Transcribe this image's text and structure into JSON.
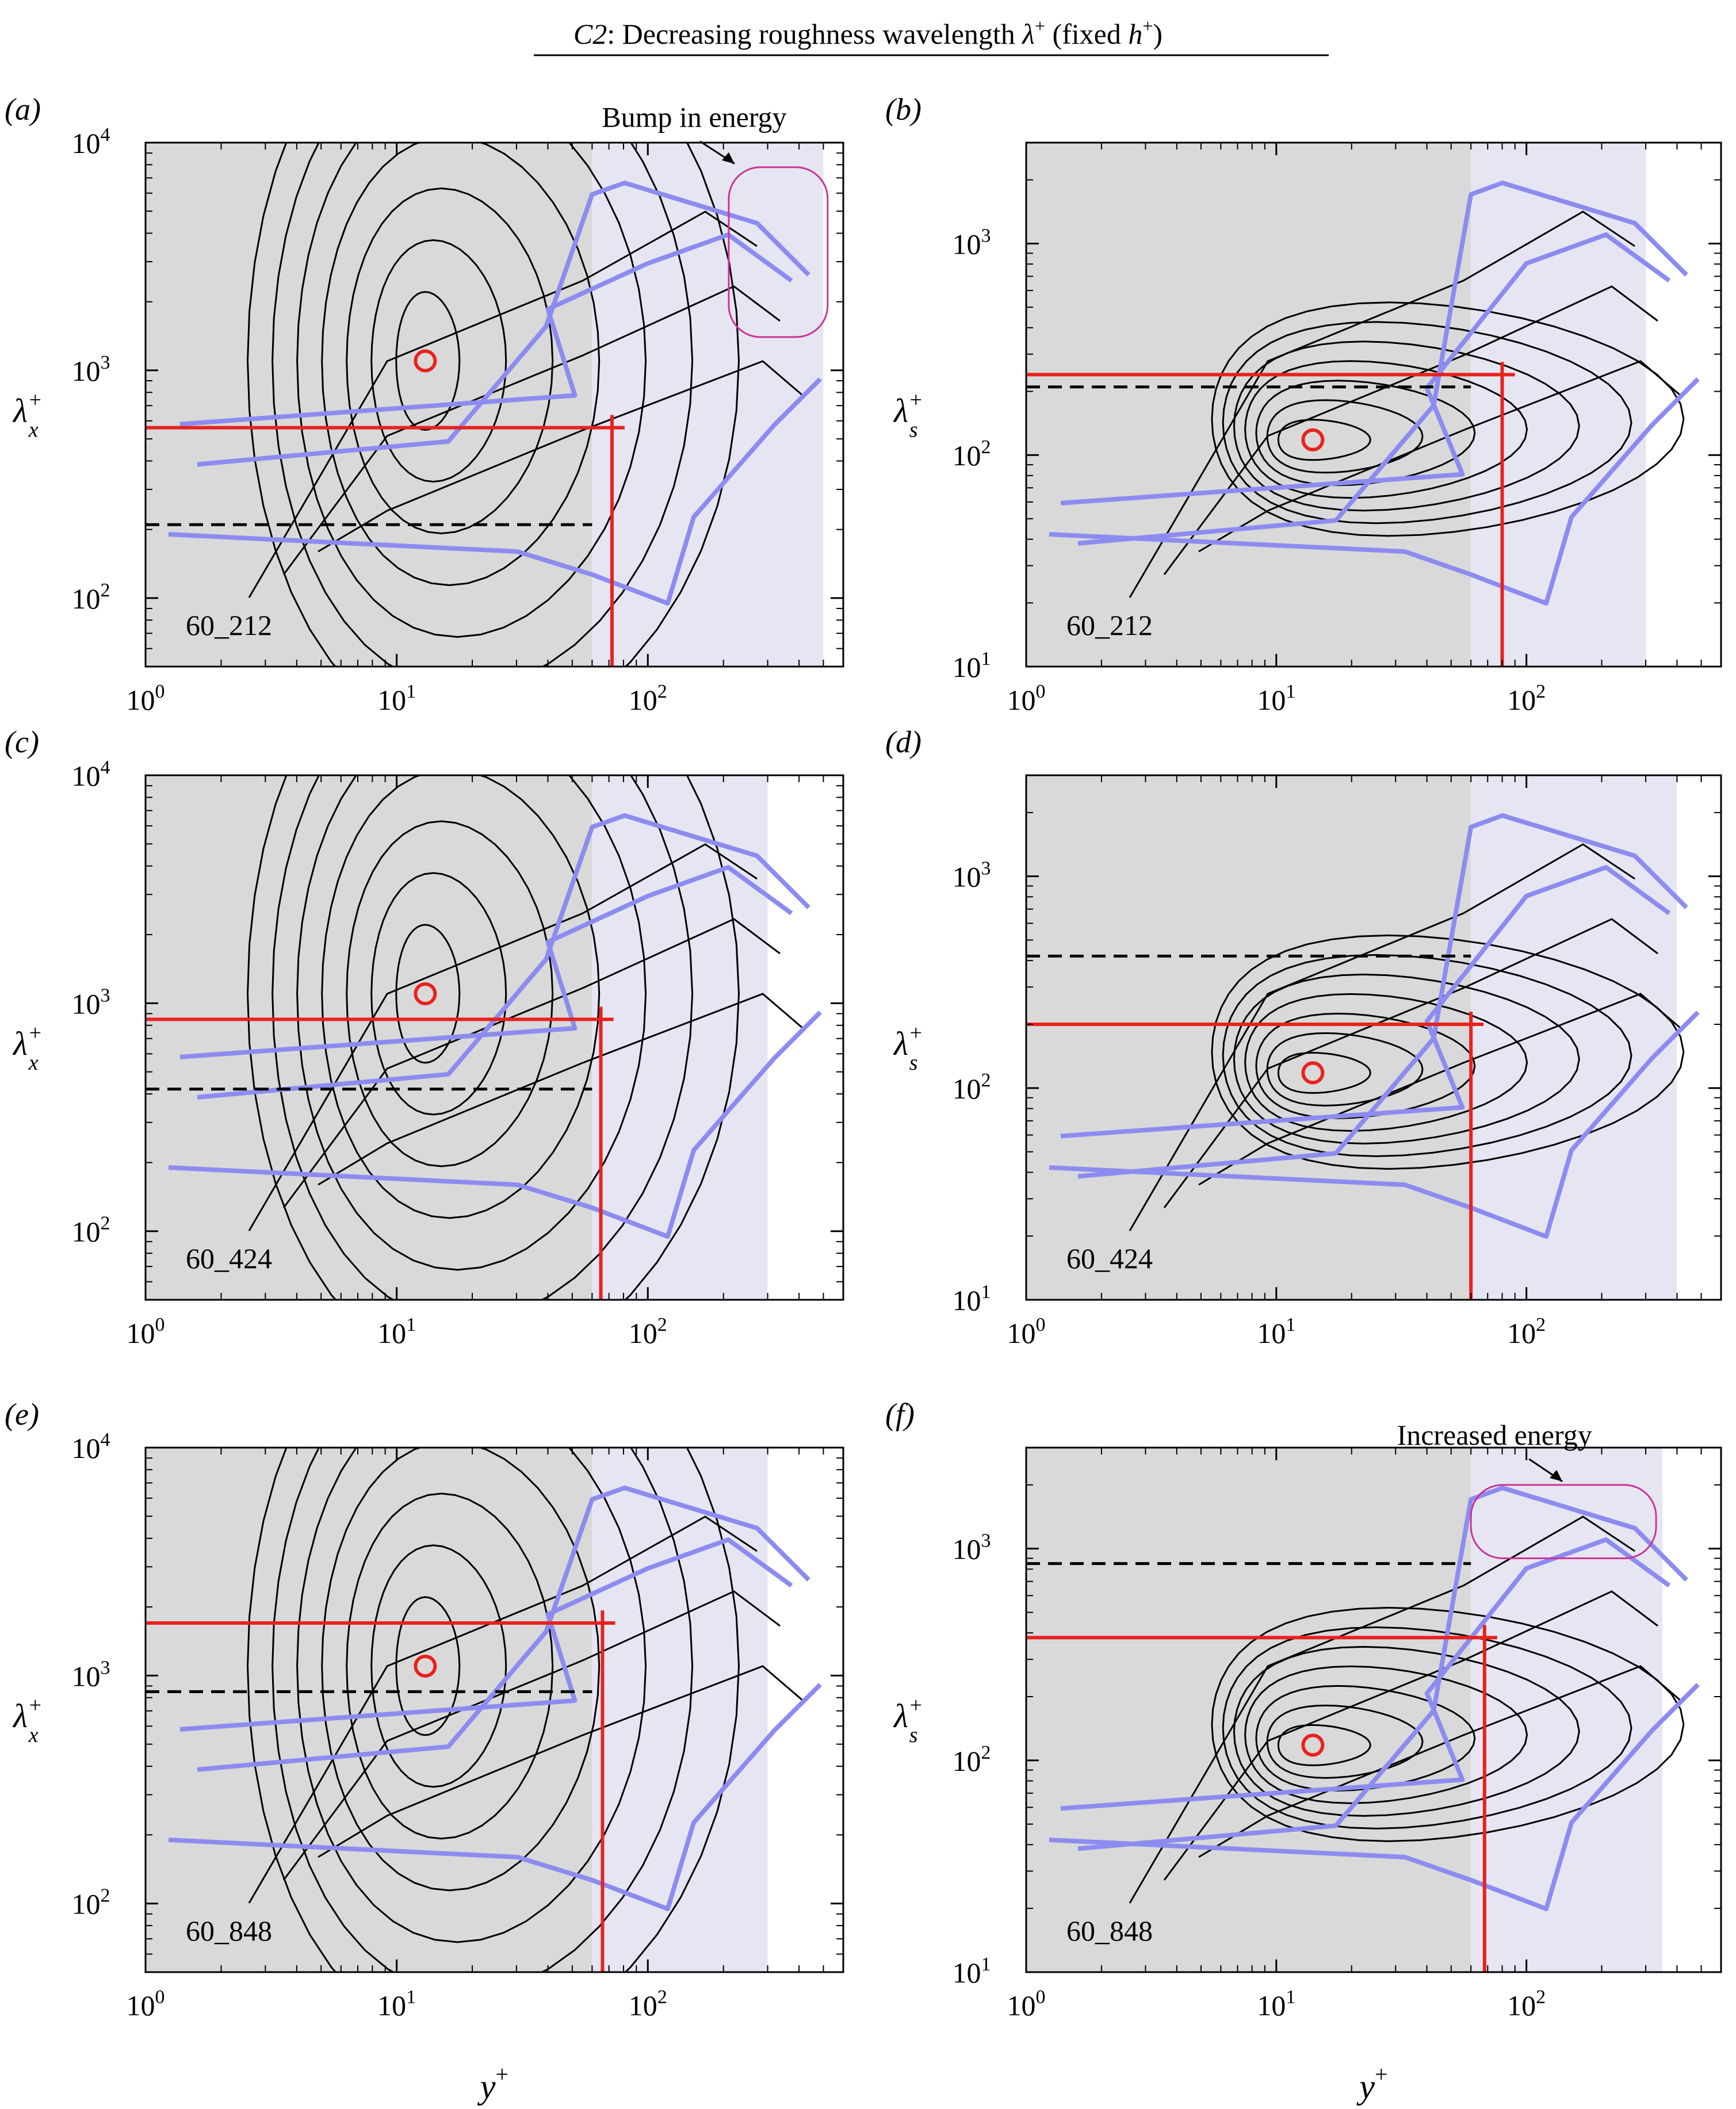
{
  "figure": {
    "title_case": "C2",
    "title_rest": ": Decreasing roughness wavelength ",
    "title_symbol": "λ",
    "title_symbol_sup": "+",
    "title_tail": " (fixed ",
    "title_h": "h",
    "title_h_sup": "+",
    "title_close": ")"
  },
  "axes_text": {
    "x_label": "y",
    "x_label_sup": "+",
    "ylabel_left": "λ",
    "ylabel_left_sub": "x",
    "ylabel_right": "λ",
    "ylabel_right_sub": "s",
    "ylabel_sup": "+",
    "tick_base": "10"
  },
  "annotations": {
    "bump": "Bump in energy",
    "increased": "Increased energy"
  },
  "colors": {
    "near_wall_shade": "#d9d9d9",
    "outer_shade": "#e6e6f2",
    "contour": "#000000",
    "blue_contour": "#8c8cf0",
    "red_marker": "#e8221e",
    "highlight_box": "#cc3399"
  },
  "chart_data": [
    {
      "panel": "(a)",
      "label": "60_212",
      "type": "contour",
      "ylabel": "λx+",
      "xscale": "log",
      "yscale": "log",
      "xlim": [
        1,
        600
      ],
      "ylim": [
        50,
        10000
      ],
      "yticks": [
        100,
        1000,
        10000
      ],
      "xticks": [
        1,
        10,
        100
      ],
      "grey_region_x": [
        1,
        60
      ],
      "blue_region_x": [
        60,
        500
      ],
      "peak": {
        "x": 13,
        "y": 1100
      },
      "red_h_y": 560,
      "red_v_x": 72,
      "dashed_y": 210,
      "annotation": "Bump in energy",
      "box": {
        "x": [
          210,
          520
        ],
        "y": [
          1400,
          7800
        ]
      }
    },
    {
      "panel": "(b)",
      "label": "60_212",
      "type": "contour",
      "ylabel": "λs+",
      "xscale": "log",
      "yscale": "log",
      "xlim": [
        1,
        600
      ],
      "ylim": [
        10,
        3000
      ],
      "yticks": [
        10,
        100,
        1000
      ],
      "xticks": [
        1,
        10,
        100
      ],
      "grey_region_x": [
        1,
        60
      ],
      "blue_region_x": [
        60,
        300
      ],
      "peak": {
        "x": 14,
        "y": 118
      },
      "red_h_y": 240,
      "red_v_x": 80,
      "dashed_y": 210
    },
    {
      "panel": "(c)",
      "label": "60_424",
      "type": "contour",
      "ylabel": "λx+",
      "xscale": "log",
      "yscale": "log",
      "xlim": [
        1,
        600
      ],
      "ylim": [
        50,
        10000
      ],
      "yticks": [
        100,
        1000,
        10000
      ],
      "xticks": [
        1,
        10,
        100
      ],
      "grey_region_x": [
        1,
        60
      ],
      "blue_region_x": [
        60,
        300
      ],
      "peak": {
        "x": 13,
        "y": 1100
      },
      "red_h_y": 850,
      "red_v_x": 65,
      "dashed_y": 420
    },
    {
      "panel": "(d)",
      "label": "60_424",
      "type": "contour",
      "ylabel": "λs+",
      "xscale": "log",
      "yscale": "log",
      "xlim": [
        1,
        600
      ],
      "ylim": [
        10,
        3000
      ],
      "yticks": [
        10,
        100,
        1000
      ],
      "xticks": [
        1,
        10,
        100
      ],
      "grey_region_x": [
        1,
        60
      ],
      "blue_region_x": [
        60,
        400
      ],
      "peak": {
        "x": 14,
        "y": 118
      },
      "red_h_y": 200,
      "red_v_x": 60,
      "dashed_y": 420
    },
    {
      "panel": "(e)",
      "label": "60_848",
      "type": "contour",
      "ylabel": "λx+",
      "xscale": "log",
      "yscale": "log",
      "xlim": [
        1,
        600
      ],
      "ylim": [
        50,
        10000
      ],
      "yticks": [
        100,
        1000,
        10000
      ],
      "xticks": [
        1,
        10,
        100
      ],
      "grey_region_x": [
        1,
        60
      ],
      "blue_region_x": [
        60,
        300
      ],
      "peak": {
        "x": 13,
        "y": 1100
      },
      "red_h_y": 1700,
      "red_v_x": 66,
      "dashed_y": 850
    },
    {
      "panel": "(f)",
      "label": "60_848",
      "type": "contour",
      "ylabel": "λs+",
      "xscale": "log",
      "yscale": "log",
      "xlim": [
        1,
        600
      ],
      "ylim": [
        10,
        3000
      ],
      "yticks": [
        10,
        100,
        1000
      ],
      "xticks": [
        1,
        10,
        100
      ],
      "grey_region_x": [
        1,
        60
      ],
      "blue_region_x": [
        60,
        350
      ],
      "peak": {
        "x": 14,
        "y": 118
      },
      "red_h_y": 380,
      "red_v_x": 68,
      "dashed_y": 850,
      "annotation": "Increased energy",
      "box": {
        "x": [
          60,
          330
        ],
        "y": [
          900,
          2000
        ]
      }
    }
  ]
}
